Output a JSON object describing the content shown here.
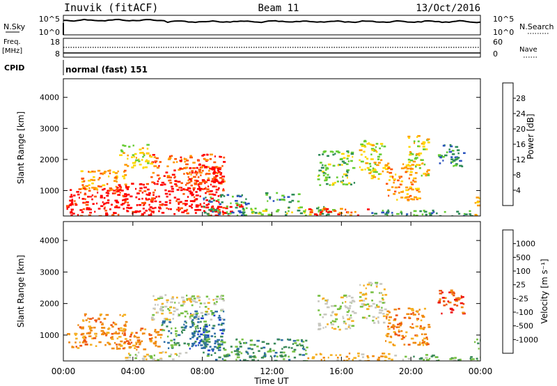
{
  "header": {
    "site": "Inuvik (fitACF)",
    "beam": "Beam 11",
    "date": "13/Oct/2016"
  },
  "noise_panel": {
    "left_label": "N.Sky",
    "right_label": "N.Search",
    "left_ticks": [
      "10^5",
      "10^0"
    ],
    "right_ticks": [
      "10^5",
      "10^0"
    ]
  },
  "freq_panel": {
    "left_label_1": "Freq.",
    "left_label_2": "[MHz]",
    "right_label": "Nave",
    "left_ticks": [
      "18",
      "8"
    ],
    "right_ticks": [
      "60",
      "0"
    ]
  },
  "cpid": {
    "label": "CPID",
    "value": "normal (fast) 151"
  },
  "time_axis": {
    "label": "Time UT",
    "ticks": [
      "00:00",
      "04:00",
      "08:00",
      "12:00",
      "16:00",
      "20:00",
      "00:00"
    ]
  },
  "range_axis": {
    "label": "Slant Range [km]",
    "ticks": [
      "1000",
      "2000",
      "3000",
      "4000"
    ]
  },
  "chart_data": [
    {
      "type": "heatmap",
      "panel": "power",
      "x_range_hours": [
        0,
        24
      ],
      "y_range_km": [
        180,
        4600
      ],
      "colorbar": {
        "label": "Power [dB]",
        "ticks": [
          "4",
          "8",
          "12",
          "16",
          "20",
          "24",
          "28"
        ],
        "colors": [
          "#0000ff",
          "#2a52be",
          "#2e8b57",
          "#66cc33",
          "#ffd700",
          "#ff9900",
          "#ff5500",
          "#ff0000"
        ]
      },
      "blobs": [
        {
          "t0": 0.1,
          "t1": 10.3,
          "r0": 180,
          "r1": 600,
          "v": 7
        },
        {
          "t0": 0.2,
          "t1": 3.8,
          "r0": 600,
          "r1": 1100,
          "v": 7
        },
        {
          "t0": 0.8,
          "t1": 3.6,
          "r0": 1050,
          "r1": 1700,
          "v": 5
        },
        {
          "t0": 3.0,
          "t1": 7.6,
          "r0": 550,
          "r1": 1250,
          "v": 7
        },
        {
          "t0": 5.0,
          "t1": 9.2,
          "r0": 1250,
          "r1": 2200,
          "v": 6
        },
        {
          "t0": 7.0,
          "t1": 9.2,
          "r0": 350,
          "r1": 1800,
          "v": 7
        },
        {
          "t0": 3.2,
          "t1": 5.0,
          "r0": 1700,
          "r1": 2500,
          "v": 4
        },
        {
          "t0": 8.0,
          "t1": 10.6,
          "r0": 200,
          "r1": 900,
          "v": 2
        },
        {
          "t0": 10.6,
          "t1": 15.5,
          "r0": 200,
          "r1": 500,
          "v": 3
        },
        {
          "t0": 11.5,
          "t1": 13.5,
          "r0": 650,
          "r1": 950,
          "v": 2
        },
        {
          "t0": 14.0,
          "t1": 17.5,
          "r0": 200,
          "r1": 450,
          "v": 6
        },
        {
          "t0": 17.5,
          "t1": 23.5,
          "r0": 200,
          "r1": 400,
          "v": 2
        },
        {
          "t0": 14.6,
          "t1": 16.7,
          "r0": 1200,
          "r1": 2300,
          "v": 3
        },
        {
          "t0": 17.0,
          "t1": 18.5,
          "r0": 1400,
          "r1": 2700,
          "v": 4
        },
        {
          "t0": 18.5,
          "t1": 20.5,
          "r0": 700,
          "r1": 1900,
          "v": 5
        },
        {
          "t0": 19.8,
          "t1": 21.0,
          "r0": 1500,
          "r1": 2800,
          "v": 4
        },
        {
          "t0": 21.5,
          "t1": 23.0,
          "r0": 1800,
          "r1": 2500,
          "v": 2
        },
        {
          "t0": 23.6,
          "t1": 24.0,
          "r0": 200,
          "r1": 900,
          "v": 4
        }
      ]
    },
    {
      "type": "heatmap",
      "panel": "velocity",
      "x_range_hours": [
        0,
        24
      ],
      "y_range_km": [
        180,
        4600
      ],
      "colorbar": {
        "label": "Velocity [m s⁻¹]",
        "ticks": [
          "1000",
          "500",
          "100",
          "25",
          "-25",
          "-100",
          "-500",
          "-1000"
        ],
        "colors": [
          "#1a3fcc",
          "#2e6ea6",
          "#3c8a5a",
          "#77c043",
          "#c8c8c0",
          "#f5b022",
          "#f08a10",
          "#ee5511",
          "#ee1111"
        ]
      },
      "blobs": [
        {
          "t0": 0.2,
          "t1": 3.8,
          "r0": 600,
          "r1": 1100,
          "v": 6
        },
        {
          "t0": 0.8,
          "t1": 3.6,
          "r0": 1050,
          "r1": 1700,
          "v": 6
        },
        {
          "t0": 3.0,
          "t1": 5.6,
          "r0": 550,
          "r1": 1250,
          "v": 6
        },
        {
          "t0": 5.6,
          "t1": 8.2,
          "r0": 600,
          "r1": 1500,
          "v": 2
        },
        {
          "t0": 7.2,
          "t1": 9.2,
          "r0": 500,
          "r1": 1800,
          "v": 1
        },
        {
          "t0": 5.0,
          "t1": 9.2,
          "r0": 1500,
          "r1": 2300,
          "v": 4
        },
        {
          "t0": 3.5,
          "t1": 7.0,
          "r0": 200,
          "r1": 500,
          "v": 4
        },
        {
          "t0": 8.0,
          "t1": 14.0,
          "r0": 200,
          "r1": 900,
          "v": 2
        },
        {
          "t0": 14.0,
          "t1": 19.0,
          "r0": 200,
          "r1": 450,
          "v": 5
        },
        {
          "t0": 19.0,
          "t1": 23.5,
          "r0": 200,
          "r1": 400,
          "v": 3
        },
        {
          "t0": 14.6,
          "t1": 16.7,
          "r0": 1200,
          "r1": 2300,
          "v": 4
        },
        {
          "t0": 17.0,
          "t1": 18.5,
          "r0": 1400,
          "r1": 2700,
          "v": 4
        },
        {
          "t0": 18.5,
          "t1": 21.0,
          "r0": 700,
          "r1": 1900,
          "v": 6
        },
        {
          "t0": 21.5,
          "t1": 23.0,
          "r0": 1700,
          "r1": 2500,
          "v": 7
        },
        {
          "t0": 23.6,
          "t1": 24.0,
          "r0": 200,
          "r1": 900,
          "v": 3
        }
      ]
    }
  ]
}
